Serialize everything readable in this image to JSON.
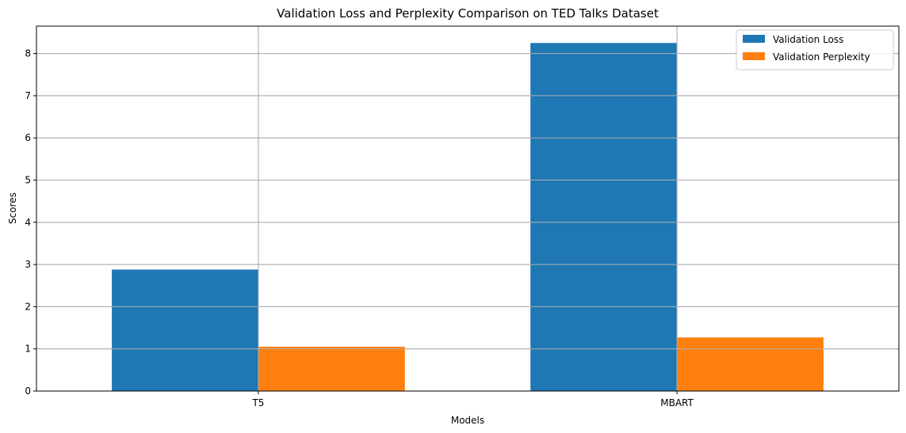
{
  "chart_data": {
    "type": "bar",
    "title": "Validation Loss and Perplexity Comparison on TED Talks Dataset",
    "xlabel": "Models",
    "ylabel": "Scores",
    "categories": [
      "T5",
      "MBART"
    ],
    "series": [
      {
        "name": "Validation Loss",
        "values": [
          2.88,
          8.25
        ],
        "color": "#1f77b4"
      },
      {
        "name": "Validation Perplexity",
        "values": [
          1.05,
          1.27
        ],
        "color": "#ff7f0e"
      }
    ],
    "ylim": [
      0,
      8.65
    ],
    "yticks": [
      0,
      1,
      2,
      3,
      4,
      5,
      6,
      7,
      8
    ],
    "grid": true,
    "legend_position": "top-right"
  }
}
